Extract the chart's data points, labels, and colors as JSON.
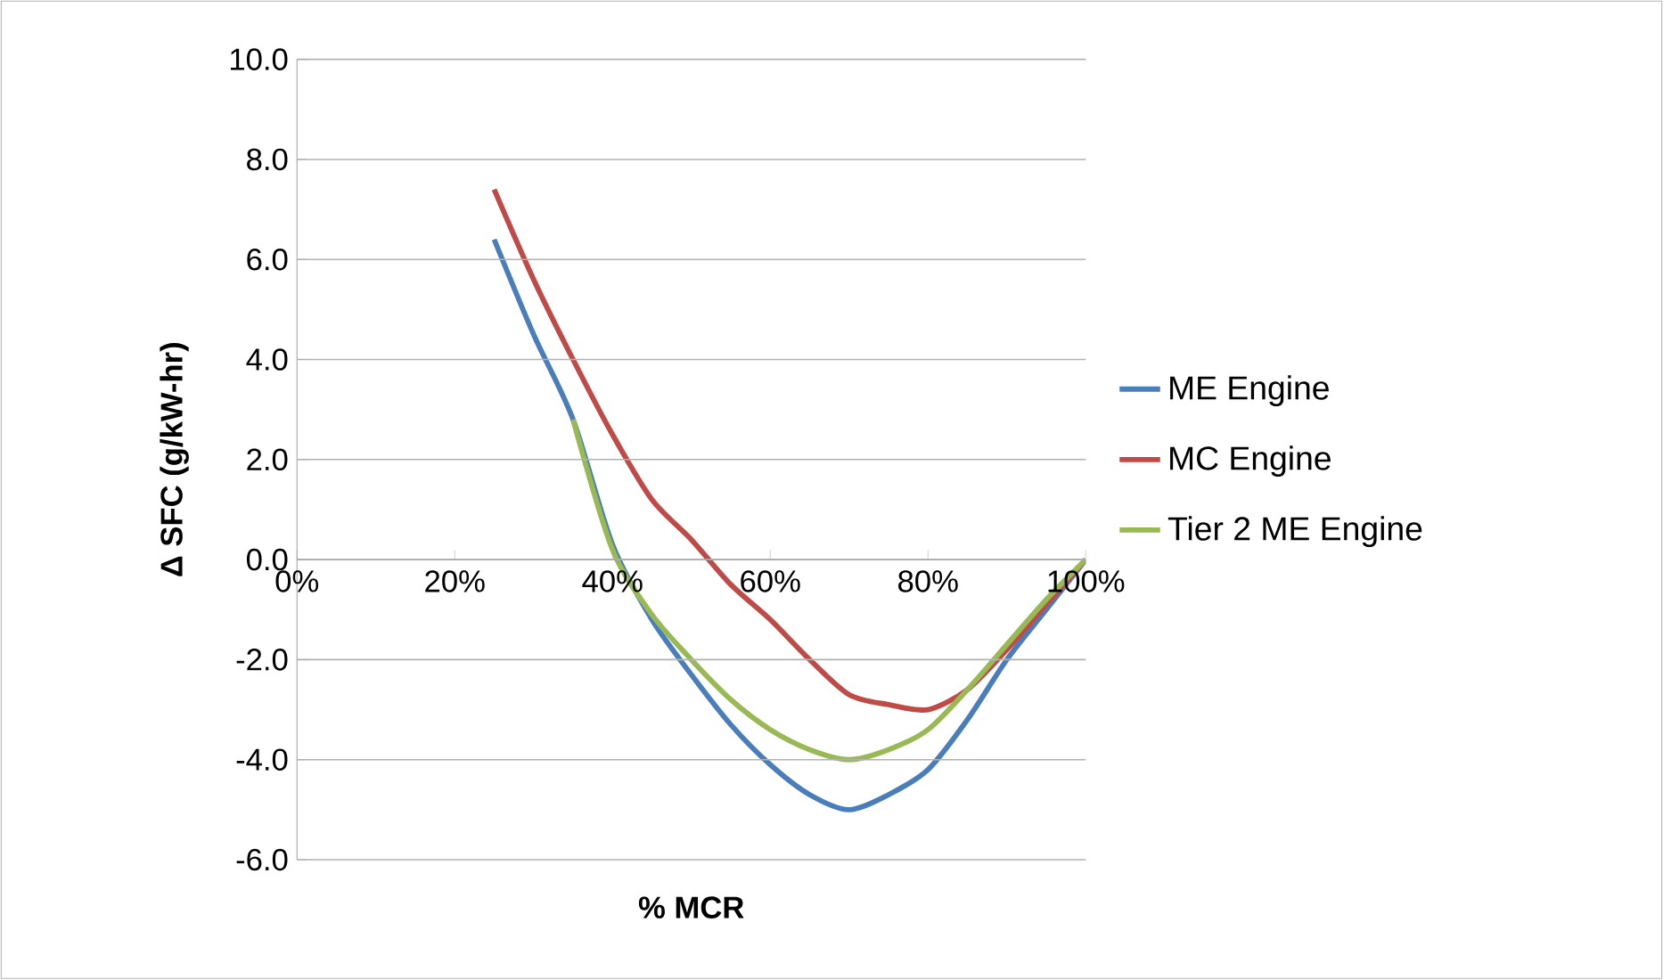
{
  "chart_data": {
    "type": "line",
    "xlabel": "% MCR",
    "ylabel": "Δ SFC (g/kW-hr)",
    "xlim": [
      0,
      100
    ],
    "ylim": [
      -6,
      10
    ],
    "xticks": [
      {
        "value": 0,
        "label": "0%"
      },
      {
        "value": 20,
        "label": "20%"
      },
      {
        "value": 40,
        "label": "40%"
      },
      {
        "value": 60,
        "label": "60%"
      },
      {
        "value": 80,
        "label": "80%"
      },
      {
        "value": 100,
        "label": "100%"
      }
    ],
    "yticks": [
      {
        "value": -6,
        "label": "-6.0"
      },
      {
        "value": -4,
        "label": "-4.0"
      },
      {
        "value": -2,
        "label": "-2.0"
      },
      {
        "value": 0,
        "label": "0.0"
      },
      {
        "value": 2,
        "label": "2.0"
      },
      {
        "value": 4,
        "label": "4.0"
      },
      {
        "value": 6,
        "label": "6.0"
      },
      {
        "value": 8,
        "label": "8.0"
      },
      {
        "value": 10,
        "label": "10.0"
      }
    ],
    "grid": "y",
    "legend": "right",
    "marker": "none",
    "line_style": "solid",
    "series": [
      {
        "name": "ME Engine",
        "color": "#4a7ebb",
        "x": [
          25,
          30,
          35,
          40,
          45,
          50,
          55,
          60,
          65,
          70,
          75,
          80,
          85,
          90,
          95,
          100
        ],
        "values": [
          6.4,
          4.5,
          2.8,
          0.3,
          -1.2,
          -2.3,
          -3.3,
          -4.1,
          -4.7,
          -5.0,
          -4.7,
          -4.2,
          -3.2,
          -2.0,
          -1.0,
          0
        ]
      },
      {
        "name": "MC Engine",
        "color": "#be4b48",
        "x": [
          25,
          30,
          35,
          40,
          45,
          50,
          55,
          60,
          65,
          70,
          75,
          80,
          85,
          90,
          95,
          100
        ],
        "values": [
          7.4,
          5.6,
          4.0,
          2.5,
          1.2,
          0.4,
          -0.5,
          -1.2,
          -2.0,
          -2.7,
          -2.9,
          -3.0,
          -2.6,
          -1.8,
          -0.9,
          0
        ]
      },
      {
        "name": "Tier 2 ME Engine",
        "color": "#98b954",
        "x": [
          35,
          40,
          45,
          50,
          55,
          60,
          65,
          70,
          75,
          80,
          85,
          90,
          95,
          100
        ],
        "values": [
          2.8,
          0.2,
          -1.1,
          -2.0,
          -2.8,
          -3.4,
          -3.8,
          -4.0,
          -3.8,
          -3.4,
          -2.6,
          -1.7,
          -0.8,
          0
        ]
      }
    ]
  }
}
